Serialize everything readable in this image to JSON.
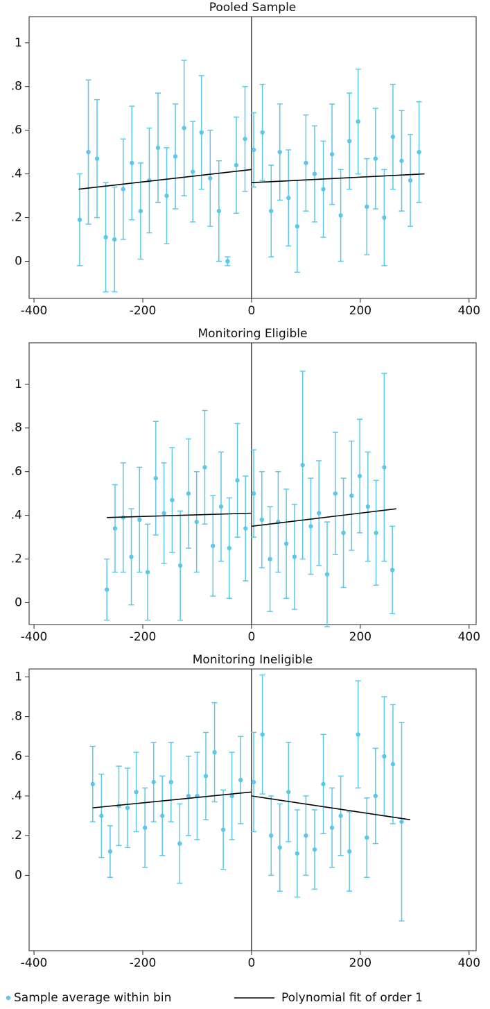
{
  "chart_data": [
    {
      "type": "scatter",
      "title": "Pooled Sample",
      "xlim": [
        -409,
        413
      ],
      "ylim": [
        -0.17,
        1.12
      ],
      "xticks": [
        -400,
        -200,
        0,
        200,
        400
      ],
      "yticks": [
        0,
        {
          "value": 0.2,
          "label": ".2"
        },
        {
          "value": 0.4,
          "label": ".4"
        },
        {
          "value": 0.6,
          "label": ".6"
        },
        {
          "value": 0.8,
          "label": ".8"
        },
        1
      ],
      "vline": 0,
      "series": [
        {
          "name": "Sample average within bin",
          "color": "#5bc8e8",
          "x": [
            -316,
            -300,
            -284,
            -268,
            -252,
            -236,
            -220,
            -204,
            -188,
            -172,
            -156,
            -140,
            -124,
            -108,
            -92,
            -76,
            -60,
            -44,
            -28,
            -12,
            4,
            20,
            36,
            52,
            68,
            84,
            100,
            116,
            132,
            148,
            164,
            180,
            196,
            212,
            228,
            244,
            260,
            276,
            292,
            308
          ],
          "values": [
            0.19,
            0.5,
            0.47,
            0.11,
            0.1,
            0.33,
            0.45,
            0.23,
            0.37,
            0.52,
            0.3,
            0.48,
            0.61,
            0.41,
            0.59,
            0.38,
            0.23,
            0.0,
            0.44,
            0.56,
            0.51,
            0.59,
            0.23,
            0.5,
            0.29,
            0.16,
            0.45,
            0.4,
            0.33,
            0.49,
            0.21,
            0.55,
            0.64,
            0.25,
            0.47,
            0.2,
            0.57,
            0.46,
            0.37,
            0.5
          ],
          "errors": [
            0.21,
            0.33,
            0.27,
            0.25,
            0.24,
            0.23,
            0.26,
            0.22,
            0.24,
            0.25,
            0.22,
            0.24,
            0.31,
            0.23,
            0.26,
            0.22,
            0.23,
            0.02,
            0.22,
            0.24,
            0.17,
            0.22,
            0.21,
            0.22,
            0.22,
            0.21,
            0.22,
            0.22,
            0.22,
            0.23,
            0.21,
            0.22,
            0.24,
            0.22,
            0.23,
            0.22,
            0.24,
            0.23,
            0.21,
            0.23
          ]
        },
        {
          "name": "Polynomial fit of order 1",
          "color": "#000000",
          "x": [
            -318,
            0,
            null,
            0,
            318
          ],
          "values": [
            0.33,
            0.42,
            null,
            0.36,
            0.4
          ]
        }
      ]
    },
    {
      "type": "scatter",
      "title": "Monitoring Eligible",
      "xlim": [
        -409,
        413
      ],
      "ylim": [
        -0.1,
        1.19
      ],
      "xticks": [
        -400,
        -200,
        0,
        200,
        400
      ],
      "yticks": [
        0,
        {
          "value": 0.2,
          "label": ".2"
        },
        {
          "value": 0.4,
          "label": ".4"
        },
        {
          "value": 0.6,
          "label": ".6"
        },
        {
          "value": 0.8,
          "label": ".8"
        },
        1
      ],
      "vline": 0,
      "series": [
        {
          "color": "#5bc8e8",
          "x": [
            -266,
            -251,
            -236,
            -221,
            -206,
            -191,
            -176,
            -161,
            -146,
            -131,
            -116,
            -101,
            -86,
            -71,
            -56,
            -41,
            -26,
            -11,
            4,
            19,
            34,
            49,
            64,
            79,
            94,
            109,
            124,
            139,
            154,
            169,
            184,
            199,
            214,
            229,
            244,
            259
          ],
          "values": [
            0.06,
            0.34,
            0.39,
            0.21,
            0.38,
            0.14,
            0.57,
            0.41,
            0.47,
            0.17,
            0.5,
            0.37,
            0.62,
            0.26,
            0.44,
            0.25,
            0.56,
            0.34,
            0.5,
            0.38,
            0.2,
            0.37,
            0.27,
            0.21,
            0.63,
            0.35,
            0.41,
            0.13,
            0.5,
            0.32,
            0.49,
            0.58,
            0.44,
            0.32,
            0.62,
            0.15
          ],
          "errors": [
            0.14,
            0.2,
            0.25,
            0.22,
            0.24,
            0.22,
            0.26,
            0.23,
            0.24,
            0.25,
            0.25,
            0.23,
            0.26,
            0.23,
            0.25,
            0.23,
            0.26,
            0.24,
            0.2,
            0.22,
            0.24,
            0.23,
            0.25,
            0.24,
            0.43,
            0.22,
            0.24,
            0.24,
            0.28,
            0.25,
            0.25,
            0.26,
            0.25,
            0.24,
            0.43,
            0.2
          ]
        },
        {
          "color": "#000000",
          "x": [
            -266,
            0,
            null,
            0,
            266
          ],
          "values": [
            0.39,
            0.41,
            null,
            0.35,
            0.43
          ]
        }
      ]
    },
    {
      "type": "scatter",
      "title": "Monitoring Ineligible",
      "xlim": [
        -409,
        413
      ],
      "ylim": [
        -0.38,
        1.04
      ],
      "xticks": [
        -400,
        -200,
        0,
        200,
        400
      ],
      "yticks": [
        0,
        {
          "value": 0.2,
          "label": ".2"
        },
        {
          "value": 0.4,
          "label": ".4"
        },
        {
          "value": 0.6,
          "label": ".6"
        },
        {
          "value": 0.8,
          "label": ".8"
        },
        1
      ],
      "vline": 0,
      "series": [
        {
          "color": "#5bc8e8",
          "x": [
            -292,
            -276,
            -260,
            -244,
            -228,
            -212,
            -196,
            -180,
            -164,
            -148,
            -132,
            -116,
            -100,
            -84,
            -68,
            -52,
            -36,
            -20,
            4,
            20,
            36,
            52,
            68,
            84,
            100,
            116,
            132,
            148,
            164,
            180,
            196,
            212,
            228,
            244,
            260,
            276
          ],
          "values": [
            0.46,
            0.3,
            0.12,
            0.35,
            0.34,
            0.42,
            0.24,
            0.47,
            0.3,
            0.47,
            0.16,
            0.4,
            0.4,
            0.5,
            0.62,
            0.23,
            0.4,
            0.48,
            0.47,
            0.71,
            0.2,
            0.14,
            0.42,
            0.11,
            0.2,
            0.13,
            0.46,
            0.24,
            0.3,
            0.12,
            0.71,
            0.19,
            0.4,
            0.6,
            0.56,
            0.27
          ],
          "errors": [
            0.19,
            0.21,
            0.13,
            0.2,
            0.2,
            0.2,
            0.2,
            0.2,
            0.2,
            0.2,
            0.2,
            0.2,
            0.22,
            0.22,
            0.25,
            0.2,
            0.22,
            0.22,
            0.25,
            0.3,
            0.2,
            0.22,
            0.25,
            0.22,
            0.2,
            0.2,
            0.25,
            0.2,
            0.2,
            0.2,
            0.27,
            0.2,
            0.24,
            0.3,
            0.3,
            0.5
          ]
        },
        {
          "color": "#000000",
          "x": [
            -292,
            0,
            null,
            0,
            292
          ],
          "values": [
            0.34,
            0.42,
            null,
            0.4,
            0.28
          ]
        }
      ]
    }
  ]
}
